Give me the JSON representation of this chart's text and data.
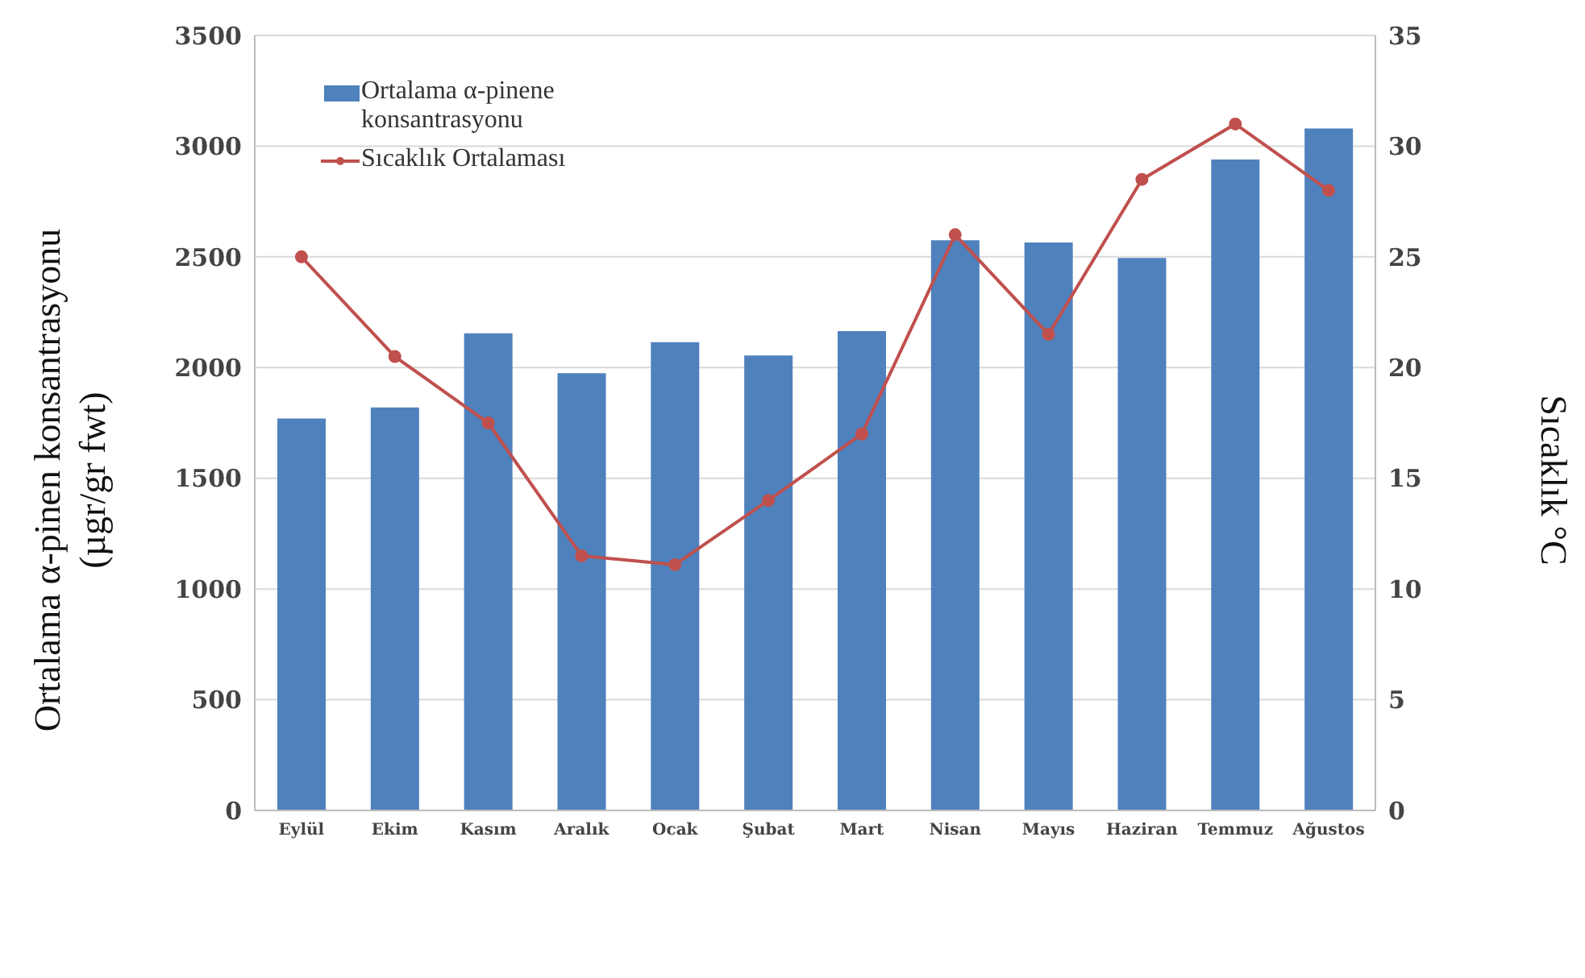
{
  "chart_data": {
    "type": "bar",
    "categories": [
      "Eylül",
      "Ekim",
      "Kasım",
      "Aralık",
      "Ocak",
      "Şubat",
      "Mart",
      "Nisan",
      "Mayıs",
      "Haziran",
      "Temmuz",
      "Ağustos"
    ],
    "series": [
      {
        "name": "Ortalama α-pinene konsantrasyonu",
        "color": "#4f81bd",
        "values": [
          1770,
          1820,
          2155,
          1975,
          2115,
          2055,
          2165,
          2575,
          2565,
          2495,
          2940,
          3080
        ]
      },
      {
        "name": "Sıcaklık Ortalaması",
        "type": "line",
        "axis": "y2",
        "color": "#c0504d",
        "values": [
          25,
          20.5,
          17.5,
          11.5,
          11.1,
          14,
          17,
          26,
          21.5,
          28.5,
          31,
          28
        ]
      }
    ],
    "ylabel": "Ortalama α-pinen konsantrasyonu (µgr/gr fwt)",
    "y2label": "Sıcaklık °C",
    "ylim": [
      0,
      3500
    ],
    "yticks": [
      0,
      500,
      1000,
      1500,
      2000,
      2500,
      3000,
      3500
    ],
    "y2lim": [
      0,
      35
    ],
    "y2ticks": [
      0,
      5,
      10,
      15,
      20,
      25,
      30,
      35
    ],
    "grid": "y",
    "legend": "top left",
    "marker": "circle",
    "line_style": "solid"
  }
}
